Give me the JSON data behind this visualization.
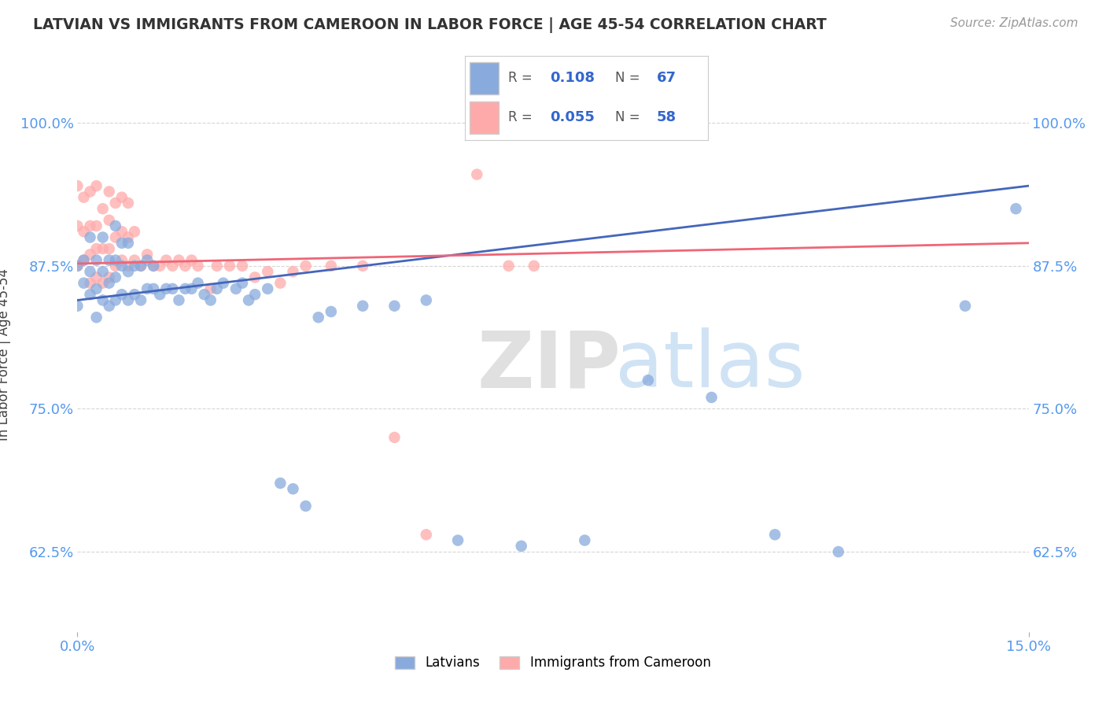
{
  "title": "LATVIAN VS IMMIGRANTS FROM CAMEROON IN LABOR FORCE | AGE 45-54 CORRELATION CHART",
  "source_text": "Source: ZipAtlas.com",
  "ylabel": "In Labor Force | Age 45-54",
  "xmin": 0.0,
  "xmax": 0.15,
  "ymin": 0.555,
  "ymax": 1.04,
  "x_ticks": [
    0.0,
    0.15
  ],
  "x_tick_labels": [
    "0.0%",
    "15.0%"
  ],
  "y_ticks": [
    0.625,
    0.75,
    0.875,
    1.0
  ],
  "y_tick_labels": [
    "62.5%",
    "75.0%",
    "87.5%",
    "100.0%"
  ],
  "blue_color": "#88AADD",
  "pink_color": "#FFAAAA",
  "blue_line_color": "#4466BB",
  "pink_line_color": "#EE6677",
  "blue_line_x0": 0.0,
  "blue_line_y0": 0.845,
  "blue_line_x1": 0.15,
  "blue_line_y1": 0.945,
  "pink_line_x0": 0.0,
  "pink_line_y0": 0.877,
  "pink_line_x1": 0.15,
  "pink_line_y1": 0.895,
  "blue_x": [
    0.0,
    0.0,
    0.001,
    0.001,
    0.002,
    0.002,
    0.002,
    0.003,
    0.003,
    0.003,
    0.004,
    0.004,
    0.004,
    0.005,
    0.005,
    0.005,
    0.006,
    0.006,
    0.006,
    0.006,
    0.007,
    0.007,
    0.007,
    0.008,
    0.008,
    0.008,
    0.009,
    0.009,
    0.01,
    0.01,
    0.011,
    0.011,
    0.012,
    0.012,
    0.013,
    0.014,
    0.015,
    0.016,
    0.017,
    0.018,
    0.019,
    0.02,
    0.021,
    0.022,
    0.023,
    0.025,
    0.026,
    0.027,
    0.028,
    0.03,
    0.032,
    0.034,
    0.036,
    0.038,
    0.04,
    0.045,
    0.05,
    0.055,
    0.06,
    0.07,
    0.08,
    0.09,
    0.1,
    0.11,
    0.12,
    0.14,
    0.148
  ],
  "blue_y": [
    0.84,
    0.875,
    0.86,
    0.88,
    0.85,
    0.87,
    0.9,
    0.83,
    0.855,
    0.88,
    0.845,
    0.87,
    0.9,
    0.84,
    0.86,
    0.88,
    0.845,
    0.865,
    0.88,
    0.91,
    0.85,
    0.875,
    0.895,
    0.845,
    0.87,
    0.895,
    0.85,
    0.875,
    0.845,
    0.875,
    0.855,
    0.88,
    0.855,
    0.875,
    0.85,
    0.855,
    0.855,
    0.845,
    0.855,
    0.855,
    0.86,
    0.85,
    0.845,
    0.855,
    0.86,
    0.855,
    0.86,
    0.845,
    0.85,
    0.855,
    0.685,
    0.68,
    0.665,
    0.83,
    0.835,
    0.84,
    0.84,
    0.845,
    0.635,
    0.63,
    0.635,
    0.775,
    0.76,
    0.64,
    0.625,
    0.84,
    0.925
  ],
  "pink_x": [
    0.0,
    0.0,
    0.0,
    0.001,
    0.001,
    0.001,
    0.002,
    0.002,
    0.002,
    0.002,
    0.003,
    0.003,
    0.003,
    0.003,
    0.004,
    0.004,
    0.004,
    0.005,
    0.005,
    0.005,
    0.005,
    0.006,
    0.006,
    0.006,
    0.007,
    0.007,
    0.007,
    0.008,
    0.008,
    0.008,
    0.009,
    0.009,
    0.01,
    0.011,
    0.012,
    0.013,
    0.014,
    0.015,
    0.016,
    0.017,
    0.018,
    0.019,
    0.021,
    0.022,
    0.024,
    0.026,
    0.028,
    0.03,
    0.032,
    0.034,
    0.036,
    0.04,
    0.045,
    0.05,
    0.055,
    0.063,
    0.068,
    0.072
  ],
  "pink_y": [
    0.875,
    0.91,
    0.945,
    0.88,
    0.905,
    0.935,
    0.86,
    0.885,
    0.91,
    0.94,
    0.865,
    0.89,
    0.91,
    0.945,
    0.86,
    0.89,
    0.925,
    0.865,
    0.89,
    0.915,
    0.94,
    0.875,
    0.9,
    0.93,
    0.88,
    0.905,
    0.935,
    0.875,
    0.9,
    0.93,
    0.88,
    0.905,
    0.875,
    0.885,
    0.875,
    0.875,
    0.88,
    0.875,
    0.88,
    0.875,
    0.88,
    0.875,
    0.855,
    0.875,
    0.875,
    0.875,
    0.865,
    0.87,
    0.86,
    0.87,
    0.875,
    0.875,
    0.875,
    0.725,
    0.64,
    0.955,
    0.875,
    0.875
  ]
}
